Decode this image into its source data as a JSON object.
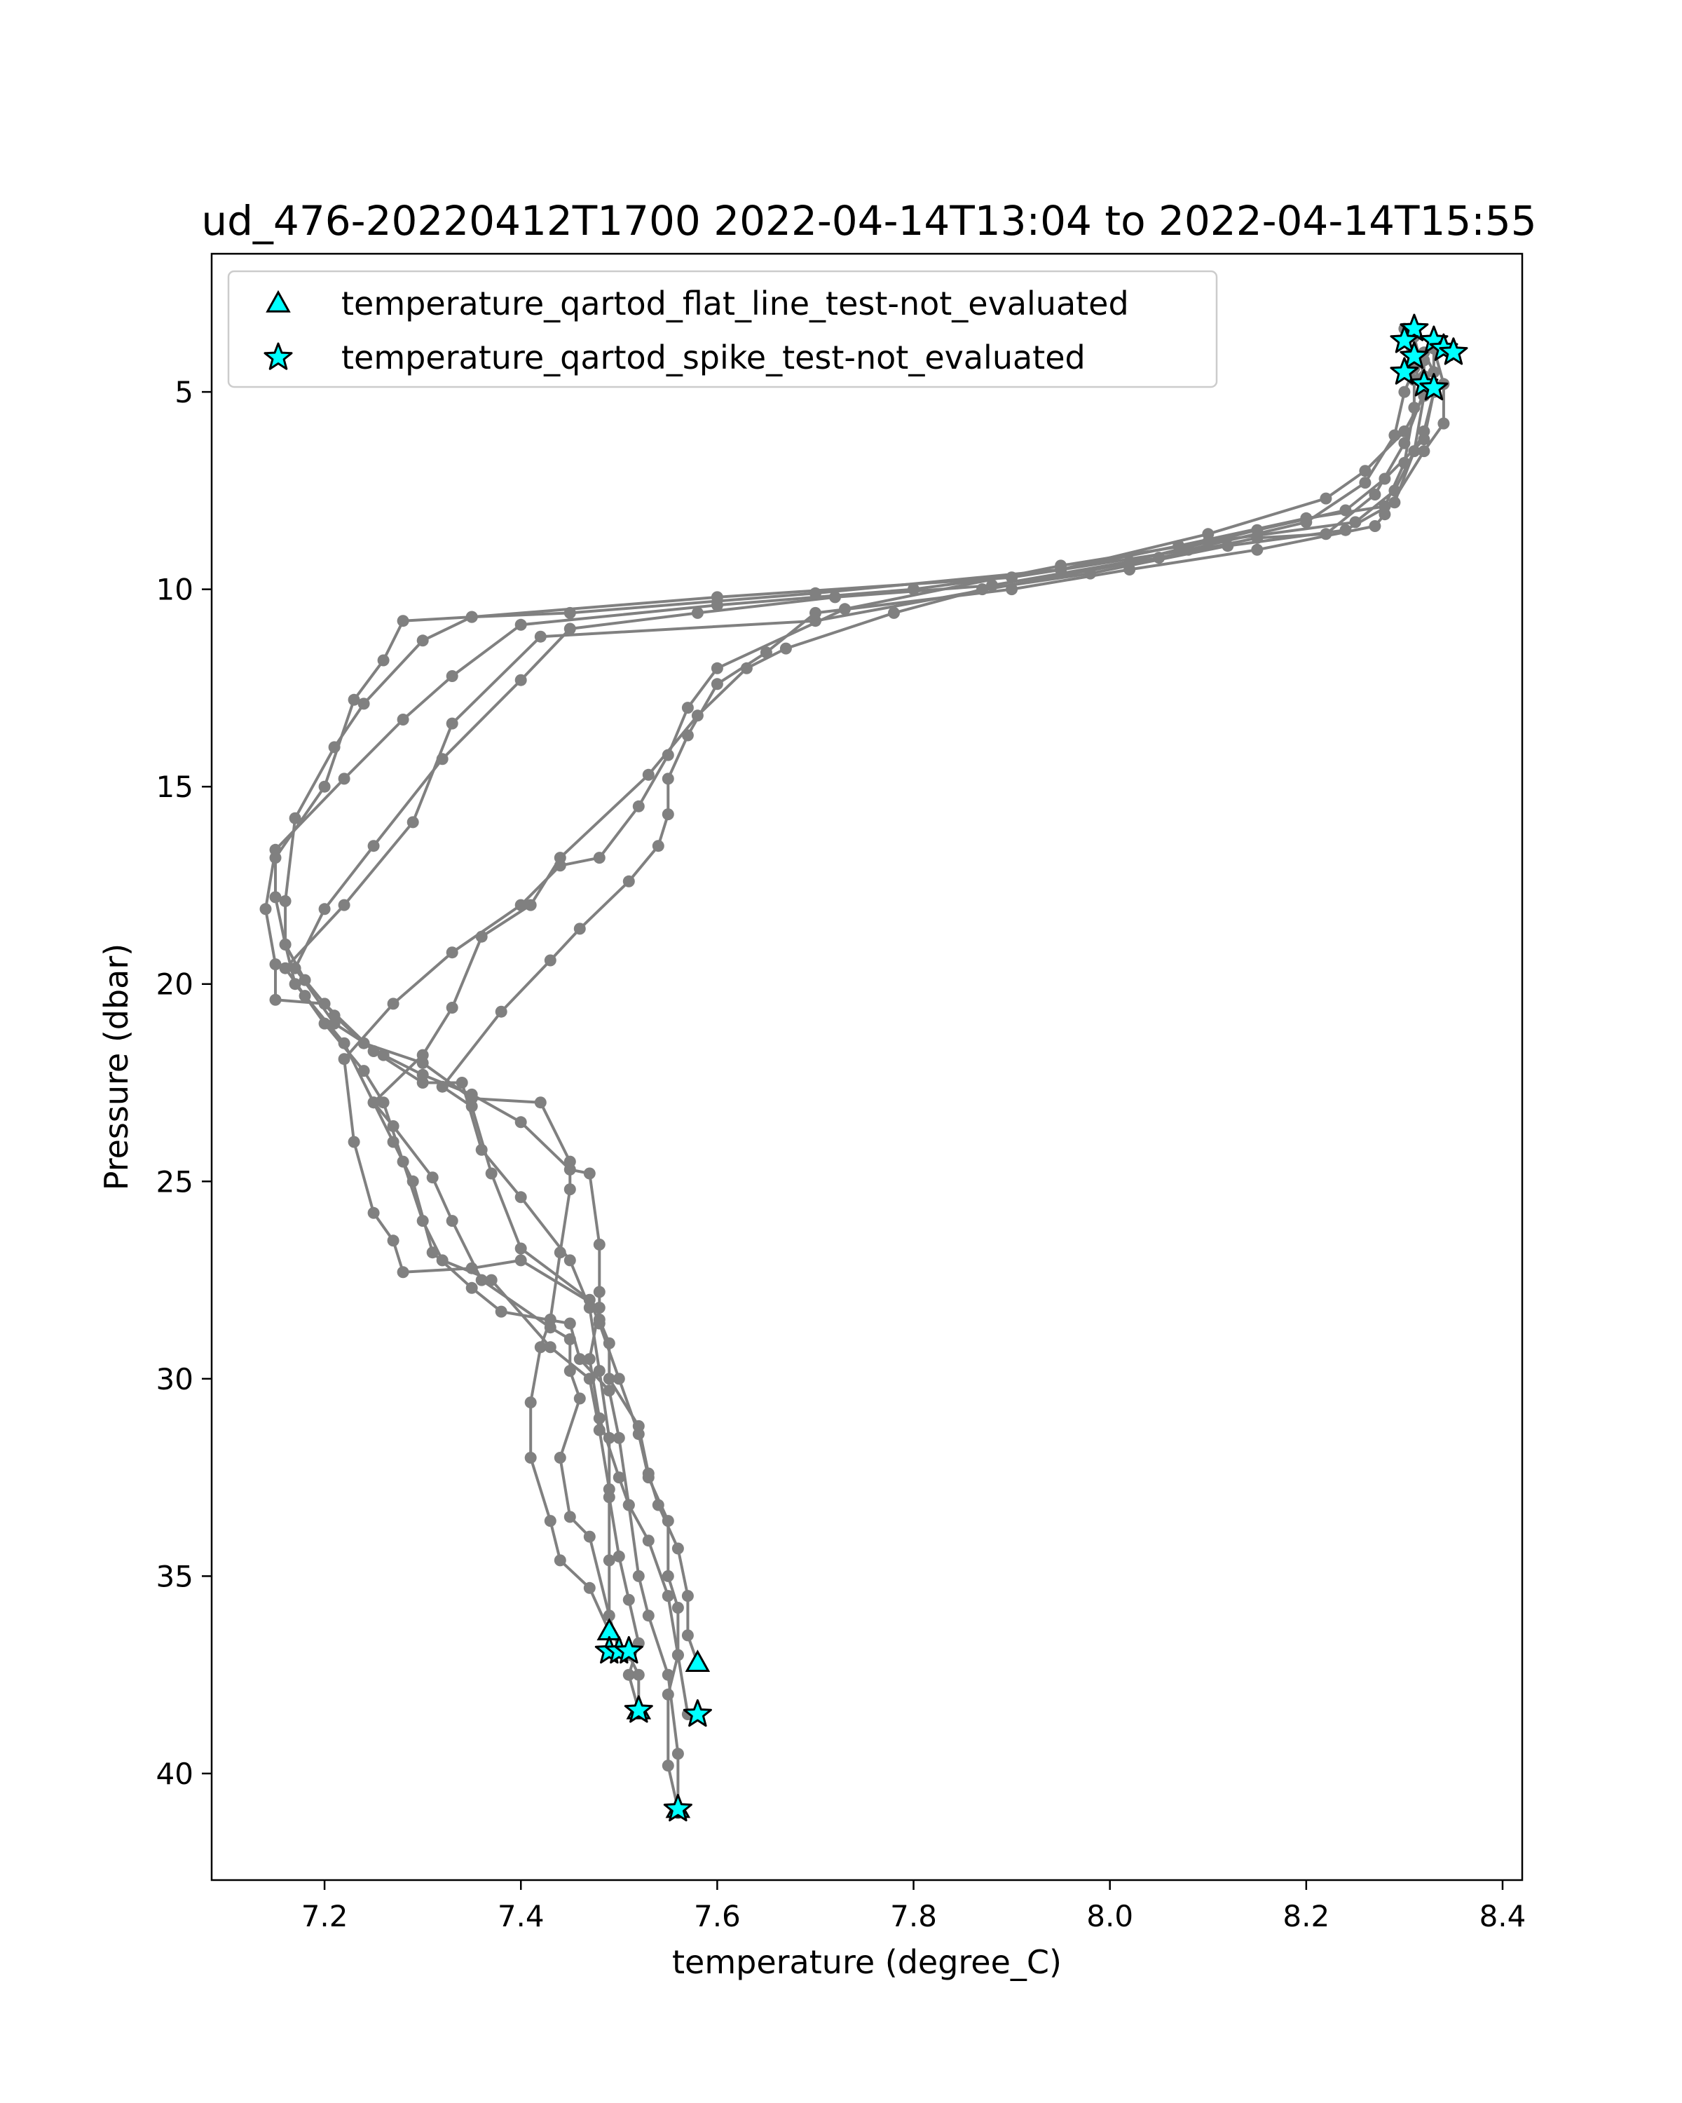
{
  "chart_data": {
    "type": "line",
    "title": "ud_476-20220412T1700 2022-04-14T13:04 to 2022-04-14T15:55",
    "xlabel": "temperature (degree_C)",
    "ylabel": "Pressure (dbar)",
    "xlim": [
      7.085,
      8.42
    ],
    "ylim": [
      42.7,
      1.5
    ],
    "y_inverted": true,
    "x_ticks": [
      7.2,
      7.4,
      7.6,
      7.8,
      8.0,
      8.2,
      8.4
    ],
    "x_tick_labels": [
      "7.2",
      "7.4",
      "7.6",
      "7.8",
      "8.0",
      "8.2",
      "8.4"
    ],
    "y_ticks": [
      5,
      10,
      15,
      20,
      25,
      30,
      35,
      40
    ],
    "y_tick_labels": [
      "5",
      "10",
      "15",
      "20",
      "25",
      "30",
      "35",
      "40"
    ],
    "grid": false,
    "legend": {
      "placement": "upper-left",
      "entries": [
        {
          "label": "temperature_qartod_flat_line_test-not_evaluated",
          "marker": "triangle",
          "color": "#00ffff"
        },
        {
          "label": "temperature_qartod_spike_test-not_evaluated",
          "marker": "star",
          "color": "#00ffff"
        }
      ]
    },
    "profile_color": "#808080",
    "marker_edge_color": "#000000",
    "series": [
      {
        "values": [
          [
            8.3,
            3.7
          ],
          [
            8.31,
            4.4
          ],
          [
            8.3,
            5.0
          ],
          [
            8.29,
            6.1
          ],
          [
            8.26,
            7.3
          ],
          [
            8.2,
            8.3
          ],
          [
            8.08,
            9.0
          ],
          [
            7.9,
            9.7
          ],
          [
            7.6,
            10.2
          ],
          [
            7.35,
            10.7
          ],
          [
            7.28,
            10.8
          ],
          [
            7.26,
            11.8
          ],
          [
            7.23,
            12.8
          ],
          [
            7.2,
            15.0
          ],
          [
            7.15,
            16.8
          ],
          [
            7.15,
            17.8
          ],
          [
            7.16,
            19.0
          ],
          [
            7.17,
            20.0
          ],
          [
            7.22,
            21.5
          ],
          [
            7.25,
            23.0
          ],
          [
            7.27,
            24.0
          ],
          [
            7.29,
            25.0
          ],
          [
            7.31,
            26.8
          ],
          [
            7.35,
            27.7
          ],
          [
            7.38,
            28.3
          ],
          [
            7.45,
            28.6
          ],
          [
            7.46,
            29.5
          ],
          [
            7.49,
            30.3
          ],
          [
            7.5,
            31.5
          ],
          [
            7.51,
            33.2
          ],
          [
            7.52,
            35.0
          ],
          [
            7.53,
            36.0
          ],
          [
            7.55,
            37.5
          ],
          [
            7.56,
            39.5
          ],
          [
            7.56,
            41.0
          ]
        ]
      },
      {
        "values": [
          [
            8.33,
            3.7
          ],
          [
            8.32,
            4.2
          ],
          [
            8.32,
            5.0
          ],
          [
            8.3,
            6.3
          ],
          [
            8.27,
            7.6
          ],
          [
            8.22,
            8.6
          ],
          [
            8.15,
            8.7
          ],
          [
            8.05,
            9.2
          ],
          [
            7.7,
            10.8
          ],
          [
            7.42,
            11.2
          ],
          [
            7.33,
            13.4
          ],
          [
            7.29,
            15.9
          ],
          [
            7.22,
            18.0
          ],
          [
            7.16,
            19.6
          ],
          [
            7.18,
            20.3
          ],
          [
            7.2,
            21.0
          ],
          [
            7.24,
            22.2
          ],
          [
            7.26,
            23.0
          ],
          [
            7.28,
            24.5
          ],
          [
            7.3,
            26.0
          ],
          [
            7.32,
            27.0
          ],
          [
            7.37,
            27.5
          ],
          [
            7.43,
            29.2
          ],
          [
            7.47,
            30.0
          ],
          [
            7.48,
            31.3
          ],
          [
            7.49,
            32.8
          ],
          [
            7.49,
            34.6
          ],
          [
            7.49,
            36.4
          ],
          [
            7.51,
            37.0
          ],
          [
            7.52,
            37.5
          ],
          [
            7.52,
            38.4
          ]
        ]
      },
      {
        "values": [
          [
            8.32,
            4.0
          ],
          [
            8.33,
            4.5
          ],
          [
            8.33,
            5.0
          ],
          [
            8.32,
            6.0
          ],
          [
            8.29,
            7.5
          ],
          [
            8.25,
            8.3
          ],
          [
            8.1,
            8.8
          ],
          [
            7.95,
            9.4
          ],
          [
            7.73,
            10.5
          ],
          [
            7.6,
            12.0
          ],
          [
            7.57,
            13.0
          ],
          [
            7.55,
            14.2
          ],
          [
            7.52,
            15.5
          ],
          [
            7.48,
            16.8
          ],
          [
            7.44,
            17.0
          ],
          [
            7.4,
            18.0
          ],
          [
            7.33,
            19.2
          ],
          [
            7.27,
            20.5
          ],
          [
            7.22,
            21.9
          ],
          [
            7.23,
            24.0
          ],
          [
            7.25,
            25.8
          ],
          [
            7.27,
            26.5
          ],
          [
            7.28,
            27.3
          ],
          [
            7.35,
            27.2
          ],
          [
            7.4,
            27.0
          ],
          [
            7.48,
            28.2
          ],
          [
            7.47,
            29.5
          ],
          [
            7.48,
            31.0
          ],
          [
            7.5,
            32.5
          ],
          [
            7.51,
            33.2
          ],
          [
            7.53,
            34.1
          ],
          [
            7.55,
            35.5
          ],
          [
            7.56,
            37.0
          ],
          [
            7.57,
            38.5
          ]
        ]
      },
      {
        "values": [
          [
            8.31,
            3.6
          ],
          [
            8.32,
            4.6
          ],
          [
            8.32,
            5.1
          ],
          [
            8.31,
            6.5
          ],
          [
            8.29,
            7.8
          ],
          [
            8.24,
            8.5
          ],
          [
            8.12,
            8.9
          ],
          [
            7.98,
            9.6
          ],
          [
            7.87,
            10.0
          ],
          [
            7.78,
            10.6
          ],
          [
            7.67,
            11.5
          ],
          [
            7.63,
            12.0
          ],
          [
            7.58,
            13.2
          ],
          [
            7.53,
            14.7
          ],
          [
            7.44,
            16.8
          ],
          [
            7.41,
            18.0
          ],
          [
            7.36,
            18.8
          ],
          [
            7.33,
            20.6
          ],
          [
            7.3,
            21.8
          ],
          [
            7.25,
            23.0
          ],
          [
            7.27,
            23.6
          ],
          [
            7.31,
            24.9
          ],
          [
            7.33,
            26.0
          ],
          [
            7.36,
            27.5
          ],
          [
            7.43,
            28.7
          ],
          [
            7.45,
            29.0
          ],
          [
            7.45,
            29.8
          ],
          [
            7.46,
            30.5
          ],
          [
            7.44,
            32.0
          ],
          [
            7.45,
            33.5
          ],
          [
            7.47,
            34.0
          ],
          [
            7.49,
            36.0
          ],
          [
            7.5,
            36.9
          ]
        ]
      },
      {
        "values": [
          [
            8.33,
            3.9
          ],
          [
            8.34,
            4.8
          ],
          [
            8.34,
            5.8
          ],
          [
            8.32,
            6.5
          ],
          [
            8.28,
            8.1
          ],
          [
            8.27,
            8.4
          ],
          [
            8.15,
            9.0
          ],
          [
            8.02,
            9.5
          ],
          [
            7.9,
            10.0
          ],
          [
            7.7,
            10.6
          ],
          [
            7.65,
            11.6
          ],
          [
            7.6,
            12.4
          ],
          [
            7.57,
            13.7
          ],
          [
            7.55,
            14.8
          ],
          [
            7.55,
            15.7
          ],
          [
            7.54,
            16.5
          ],
          [
            7.51,
            17.4
          ],
          [
            7.46,
            18.6
          ],
          [
            7.43,
            19.4
          ],
          [
            7.38,
            20.7
          ],
          [
            7.32,
            22.6
          ],
          [
            7.35,
            23.1
          ],
          [
            7.37,
            24.8
          ],
          [
            7.4,
            26.7
          ],
          [
            7.47,
            28.0
          ],
          [
            7.48,
            28.6
          ],
          [
            7.5,
            30.0
          ],
          [
            7.52,
            31.4
          ],
          [
            7.53,
            32.5
          ],
          [
            7.55,
            33.6
          ],
          [
            7.55,
            35.0
          ],
          [
            7.56,
            35.8
          ],
          [
            7.56,
            37.0
          ],
          [
            7.55,
            38.0
          ],
          [
            7.55,
            39.8
          ],
          [
            7.56,
            40.9
          ]
        ]
      },
      {
        "values": [
          [
            8.3,
            3.4
          ],
          [
            8.31,
            4.7
          ],
          [
            8.31,
            5.4
          ],
          [
            8.3,
            6.8
          ],
          [
            8.28,
            7.9
          ],
          [
            8.2,
            8.2
          ],
          [
            8.07,
            8.9
          ],
          [
            7.95,
            9.5
          ],
          [
            7.8,
            10.0
          ],
          [
            7.6,
            10.4
          ],
          [
            7.4,
            10.9
          ],
          [
            7.33,
            12.2
          ],
          [
            7.28,
            13.3
          ],
          [
            7.22,
            14.8
          ],
          [
            7.15,
            16.6
          ],
          [
            7.14,
            18.1
          ],
          [
            7.15,
            19.5
          ],
          [
            7.15,
            20.4
          ],
          [
            7.2,
            20.5
          ],
          [
            7.25,
            21.7
          ],
          [
            7.3,
            22.5
          ],
          [
            7.34,
            22.5
          ],
          [
            7.36,
            24.2
          ],
          [
            7.4,
            25.4
          ],
          [
            7.45,
            27.0
          ],
          [
            7.47,
            28.2
          ],
          [
            7.48,
            29.8
          ],
          [
            7.49,
            31.5
          ],
          [
            7.49,
            33.0
          ],
          [
            7.5,
            34.5
          ],
          [
            7.51,
            35.6
          ],
          [
            7.52,
            36.7
          ],
          [
            7.51,
            37.5
          ],
          [
            7.52,
            38.4
          ]
        ]
      },
      {
        "values": [
          [
            8.31,
            3.5
          ],
          [
            8.31,
            4.3
          ],
          [
            8.32,
            5.1
          ],
          [
            8.3,
            6.0
          ],
          [
            8.26,
            7.0
          ],
          [
            8.22,
            7.7
          ],
          [
            8.1,
            8.6
          ],
          [
            7.95,
            9.5
          ],
          [
            7.7,
            10.1
          ],
          [
            7.45,
            10.6
          ],
          [
            7.35,
            10.7
          ],
          [
            7.3,
            11.3
          ],
          [
            7.24,
            12.9
          ],
          [
            7.21,
            14.0
          ],
          [
            7.17,
            15.8
          ],
          [
            7.16,
            17.9
          ],
          [
            7.16,
            19.0
          ],
          [
            7.18,
            19.9
          ],
          [
            7.21,
            20.8
          ],
          [
            7.24,
            21.5
          ],
          [
            7.3,
            22.0
          ],
          [
            7.35,
            22.9
          ],
          [
            7.42,
            23.0
          ],
          [
            7.45,
            24.5
          ],
          [
            7.45,
            25.2
          ],
          [
            7.44,
            26.8
          ],
          [
            7.43,
            28.5
          ],
          [
            7.42,
            29.2
          ],
          [
            7.41,
            30.6
          ],
          [
            7.41,
            32.0
          ],
          [
            7.43,
            33.6
          ],
          [
            7.44,
            34.6
          ],
          [
            7.47,
            35.3
          ],
          [
            7.49,
            36.4
          ]
        ]
      },
      {
        "values": [
          [
            8.33,
            3.9
          ],
          [
            8.33,
            5.0
          ],
          [
            8.32,
            6.2
          ],
          [
            8.28,
            7.2
          ],
          [
            8.24,
            8.0
          ],
          [
            8.15,
            8.5
          ],
          [
            8.02,
            9.3
          ],
          [
            7.88,
            9.9
          ],
          [
            7.72,
            10.2
          ],
          [
            7.58,
            10.6
          ],
          [
            7.45,
            11.0
          ],
          [
            7.4,
            12.3
          ],
          [
            7.32,
            14.3
          ],
          [
            7.25,
            16.5
          ],
          [
            7.2,
            18.1
          ],
          [
            7.17,
            19.6
          ],
          [
            7.21,
            21.0
          ],
          [
            7.26,
            21.8
          ],
          [
            7.3,
            22.3
          ],
          [
            7.35,
            22.8
          ],
          [
            7.4,
            23.5
          ],
          [
            7.45,
            24.7
          ],
          [
            7.47,
            24.8
          ],
          [
            7.48,
            26.6
          ],
          [
            7.48,
            27.8
          ],
          [
            7.48,
            28.5
          ],
          [
            7.49,
            29.1
          ],
          [
            7.49,
            30.0
          ],
          [
            7.52,
            31.2
          ],
          [
            7.53,
            32.4
          ],
          [
            7.54,
            33.2
          ],
          [
            7.56,
            34.3
          ],
          [
            7.57,
            35.5
          ],
          [
            7.57,
            36.5
          ],
          [
            7.58,
            37.2
          ]
        ]
      }
    ],
    "flat_line_flags": [
      [
        7.49,
        36.4
      ],
      [
        7.58,
        37.2
      ],
      [
        7.52,
        38.4
      ],
      [
        7.56,
        40.9
      ]
    ],
    "spike_flags": [
      [
        8.31,
        3.4
      ],
      [
        8.3,
        3.7
      ],
      [
        8.33,
        3.7
      ],
      [
        8.34,
        3.9
      ],
      [
        8.35,
        4.0
      ],
      [
        8.31,
        4.1
      ],
      [
        8.3,
        4.5
      ],
      [
        8.32,
        4.8
      ],
      [
        8.33,
        4.9
      ],
      [
        7.49,
        36.9
      ],
      [
        7.5,
        36.9
      ],
      [
        7.51,
        36.9
      ],
      [
        7.52,
        38.4
      ],
      [
        7.58,
        38.5
      ],
      [
        7.56,
        40.9
      ]
    ]
  }
}
